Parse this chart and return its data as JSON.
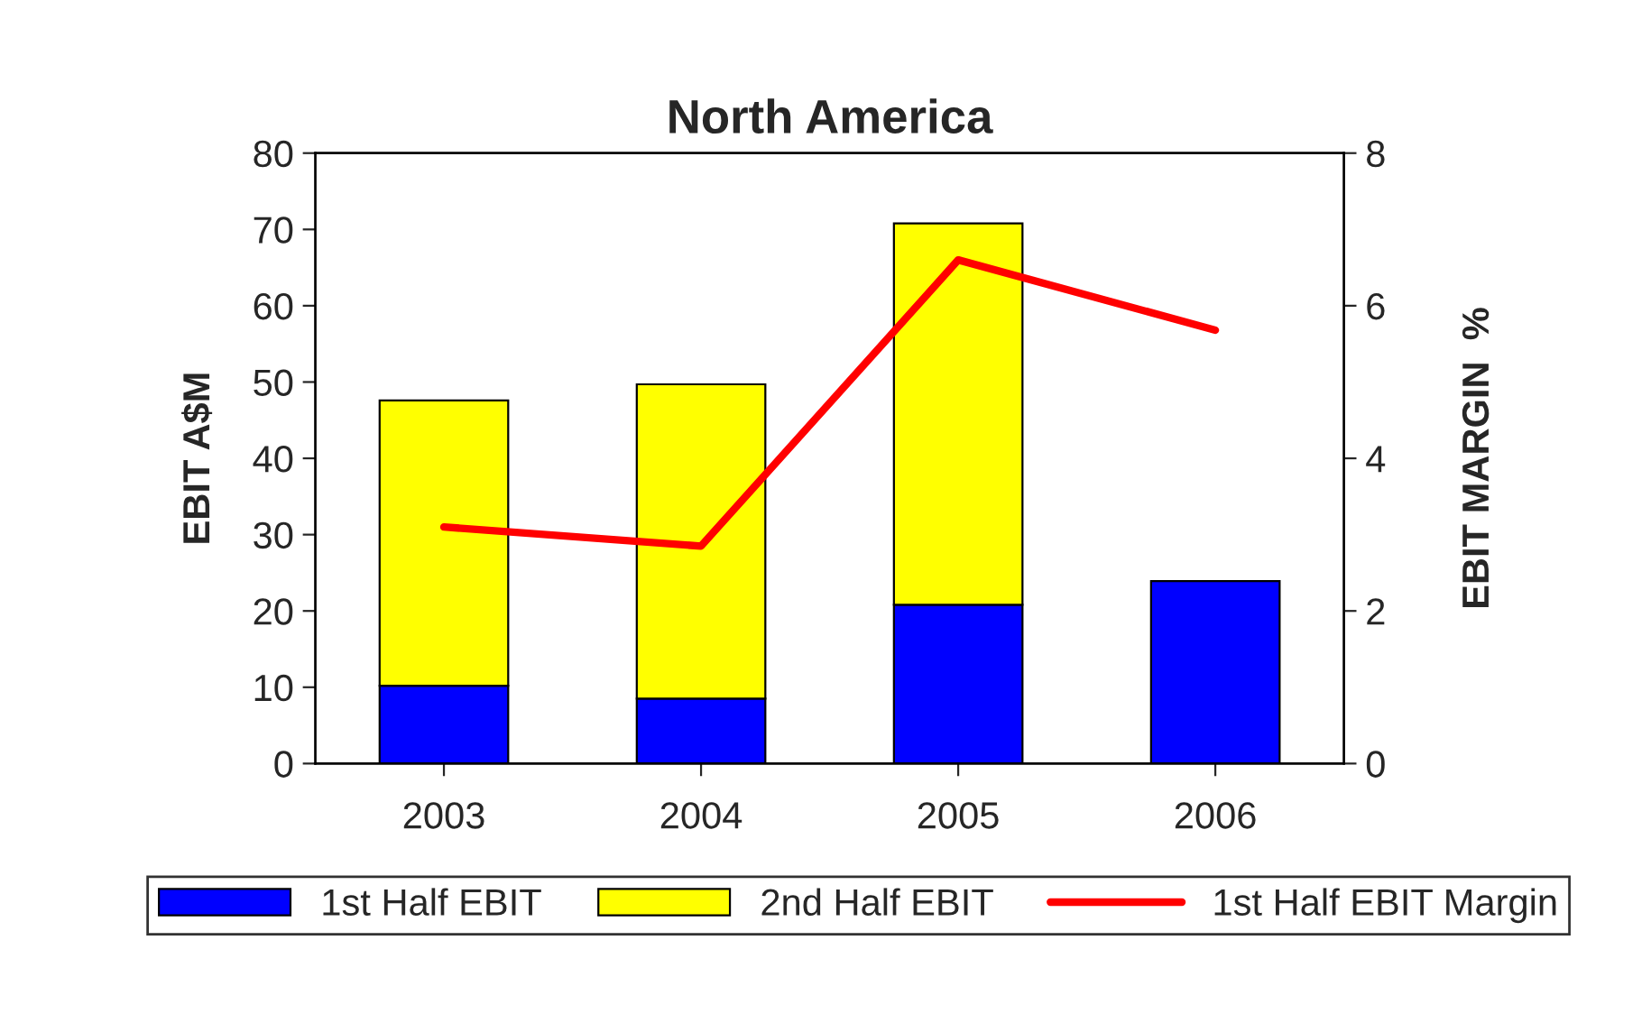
{
  "chart_data": {
    "type": "bar",
    "title": "North America",
    "ylabel": "EBIT A$M",
    "y2label": "EBIT MARGIN  %",
    "categories": [
      "2003",
      "2004",
      "2005",
      "2006"
    ],
    "stacked": true,
    "series": [
      {
        "name": "1st Half EBIT",
        "color": "#0000ff",
        "values": [
          10.2,
          8.5,
          20.8,
          23.9
        ]
      },
      {
        "name": "2nd Half EBIT",
        "color": "#ffff00",
        "values": [
          37.4,
          41.2,
          50.0,
          null
        ]
      },
      {
        "name": "1st Half EBIT Margin",
        "type": "line",
        "axis": "y2",
        "color": "#ff0000",
        "values": [
          3.1,
          2.85,
          6.6,
          5.68
        ]
      }
    ],
    "ylim": [
      0,
      80
    ],
    "yticks": [
      0,
      10,
      20,
      30,
      40,
      50,
      60,
      70,
      80
    ],
    "y2lim": [
      0,
      8
    ],
    "y2ticks": [
      0,
      2,
      4,
      6,
      8
    ],
    "grid": false,
    "legend": "bottom"
  }
}
